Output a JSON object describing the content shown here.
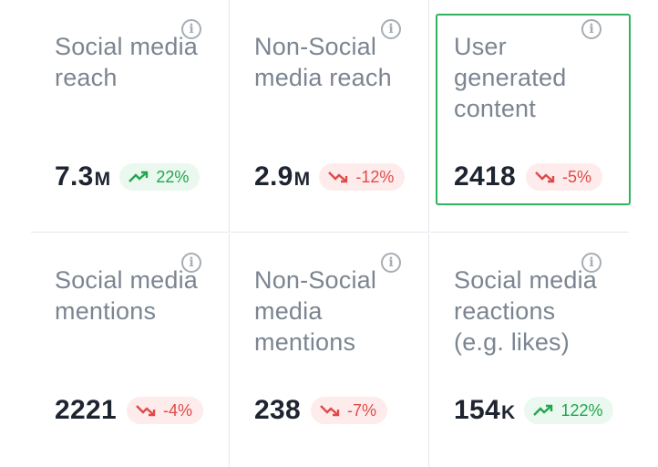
{
  "cards": [
    {
      "title": "Social media reach",
      "value": "7.3",
      "unit": "M",
      "change": "22%",
      "trend": "up",
      "info_icon": "info-icon"
    },
    {
      "title": "Non-Social media reach",
      "value": "2.9",
      "unit": "M",
      "change": "-12%",
      "trend": "down",
      "info_icon": "info-icon"
    },
    {
      "title": "User generated content",
      "value": "2418",
      "unit": "",
      "change": "-5%",
      "trend": "down",
      "info_icon": "info-icon",
      "selected": true
    },
    {
      "title": "Social media mentions",
      "value": "2221",
      "unit": "",
      "change": "-4%",
      "trend": "down",
      "info_icon": "info-icon"
    },
    {
      "title": "Non-Social media mentions",
      "value": "238",
      "unit": "",
      "change": "-7%",
      "trend": "down",
      "info_icon": "info-icon"
    },
    {
      "title": "Social media reactions (e.g. likes)",
      "value": "154",
      "unit": "K",
      "change": "122%",
      "trend": "up",
      "info_icon": "info-icon"
    }
  ],
  "info_glyph": "i",
  "colors": {
    "up": "#22a64f",
    "down": "#e04a48",
    "selected_border": "#2fb35c"
  }
}
